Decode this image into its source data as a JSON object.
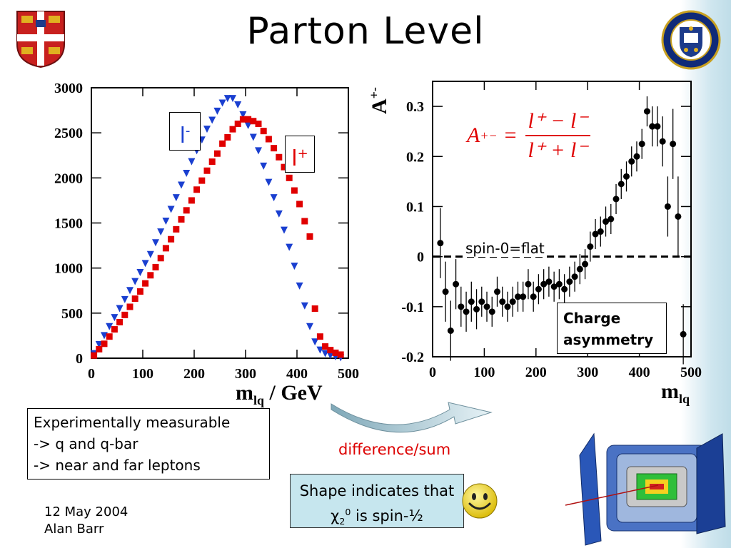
{
  "title": "Parton Level",
  "left_chart": {
    "xlabel_main": "m",
    "xlabel_sub": "lq",
    "xlabel_unit": " / GeV",
    "legend_lminus": "l",
    "legend_lminus_sup": "-",
    "legend_lplus": "l",
    "legend_lplus_sup": "+"
  },
  "right_chart": {
    "ylabel_main": "A",
    "ylabel_sup": "+-",
    "xlabel_main": "m",
    "xlabel_sub": "lq",
    "formula_lhs": "A",
    "formula_lhs_sup": "+−",
    "formula_eq": "=",
    "formula_num": "l⁺ − l⁻",
    "formula_den": "l⁺ + l⁻",
    "annotation": "spin-0=flat",
    "charge_line1": "Charge",
    "charge_line2": "asymmetry"
  },
  "measure_box": {
    "line1": "Experimentally measurable",
    "line2": "-> q and q-bar",
    "line3": "-> near and far leptons"
  },
  "diff_label": "difference/sum",
  "shape_box": {
    "line1": "Shape indicates that",
    "line2_chi": "χ",
    "line2_sub": "2",
    "line2_sup": "0",
    "line2_rest": " is spin-½"
  },
  "footer": {
    "date": "12 May 2004",
    "author": "Alan Barr"
  },
  "colors": {
    "lminus": "#1a3fd0",
    "lplus": "#e00000",
    "asymmetry": "#000000",
    "formula": "#e00000",
    "highlight_box": "#c6e6ee"
  },
  "icons": [
    "cambridge-crest-icon",
    "oxford-seal-icon",
    "smiley-icon",
    "detector-icon",
    "curved-arrow-icon"
  ],
  "chart_data": [
    {
      "type": "scatter",
      "xlabel": "m_lq / GeV",
      "ylabel": "",
      "xlim": [
        0,
        500
      ],
      "ylim": [
        0,
        3000
      ],
      "xticks": [
        0,
        100,
        200,
        300,
        400,
        500
      ],
      "yticks": [
        0,
        500,
        1000,
        1500,
        2000,
        2500,
        3000
      ],
      "series": [
        {
          "name": "l-",
          "marker": "triangle-down",
          "x": [
            5,
            15,
            25,
            35,
            45,
            55,
            65,
            75,
            85,
            95,
            105,
            115,
            125,
            135,
            145,
            155,
            165,
            175,
            185,
            195,
            205,
            215,
            225,
            235,
            245,
            255,
            265,
            275,
            285,
            295,
            305,
            315,
            325,
            335,
            345,
            355,
            365,
            375,
            385,
            395,
            405,
            415,
            425,
            435,
            445,
            455,
            465,
            475,
            485
          ],
          "y": [
            50,
            150,
            250,
            350,
            450,
            550,
            650,
            750,
            850,
            950,
            1050,
            1150,
            1280,
            1400,
            1520,
            1650,
            1780,
            1920,
            2050,
            2180,
            2300,
            2420,
            2540,
            2640,
            2740,
            2830,
            2880,
            2880,
            2810,
            2700,
            2580,
            2450,
            2300,
            2130,
            1950,
            1780,
            1600,
            1420,
            1230,
            1020,
            800,
            580,
            350,
            180,
            90,
            50,
            30,
            15,
            5
          ]
        },
        {
          "name": "l+",
          "marker": "square",
          "x": [
            5,
            15,
            25,
            35,
            45,
            55,
            65,
            75,
            85,
            95,
            105,
            115,
            125,
            135,
            145,
            155,
            165,
            175,
            185,
            195,
            205,
            215,
            225,
            235,
            245,
            255,
            265,
            275,
            285,
            295,
            305,
            315,
            325,
            335,
            345,
            355,
            365,
            375,
            385,
            395,
            405,
            415,
            425,
            435,
            445,
            455,
            465,
            475,
            485
          ],
          "y": [
            30,
            100,
            160,
            240,
            320,
            400,
            480,
            570,
            660,
            740,
            830,
            920,
            1010,
            1110,
            1220,
            1320,
            1430,
            1540,
            1640,
            1750,
            1870,
            1970,
            2080,
            2180,
            2270,
            2380,
            2450,
            2540,
            2600,
            2650,
            2650,
            2630,
            2600,
            2520,
            2430,
            2330,
            2230,
            2120,
            2000,
            1860,
            1710,
            1520,
            1350,
            550,
            240,
            130,
            90,
            60,
            40
          ]
        }
      ]
    },
    {
      "type": "scatter",
      "xlabel": "m_lq",
      "ylabel": "A+-",
      "xlim": [
        0,
        500
      ],
      "ylim": [
        -0.2,
        0.35
      ],
      "xticks": [
        0,
        100,
        200,
        300,
        400,
        500
      ],
      "yticks": [
        -0.2,
        -0.1,
        0,
        0.1,
        0.2,
        0.3
      ],
      "reference_line": 0,
      "series": [
        {
          "name": "",
          "marker": "circle",
          "x": [
            15,
            25,
            35,
            45,
            55,
            65,
            75,
            85,
            95,
            105,
            115,
            125,
            135,
            145,
            155,
            165,
            175,
            185,
            195,
            205,
            215,
            225,
            235,
            245,
            255,
            265,
            275,
            285,
            295,
            305,
            315,
            325,
            335,
            345,
            355,
            365,
            375,
            385,
            395,
            405,
            415,
            425,
            435,
            445,
            455,
            465,
            475,
            485
          ],
          "y": [
            0.027,
            -0.07,
            -0.148,
            -0.055,
            -0.1,
            -0.11,
            -0.09,
            -0.105,
            -0.09,
            -0.1,
            -0.11,
            -0.07,
            -0.09,
            -0.1,
            -0.09,
            -0.08,
            -0.08,
            -0.055,
            -0.08,
            -0.065,
            -0.055,
            -0.05,
            -0.06,
            -0.055,
            -0.065,
            -0.05,
            -0.04,
            -0.025,
            -0.015,
            0.02,
            0.045,
            0.05,
            0.07,
            0.075,
            0.115,
            0.145,
            0.16,
            0.19,
            0.2,
            0.225,
            0.29,
            0.26,
            0.26,
            0.23,
            0.1,
            0.225,
            0.08,
            -0.155
          ],
          "errors": [
            0.07,
            0.06,
            0.06,
            0.05,
            0.04,
            0.04,
            0.04,
            0.04,
            0.03,
            0.03,
            0.03,
            0.03,
            0.03,
            0.03,
            0.03,
            0.03,
            0.03,
            0.03,
            0.03,
            0.03,
            0.03,
            0.03,
            0.03,
            0.03,
            0.03,
            0.03,
            0.03,
            0.03,
            0.03,
            0.03,
            0.03,
            0.03,
            0.03,
            0.03,
            0.03,
            0.03,
            0.03,
            0.03,
            0.03,
            0.03,
            0.03,
            0.04,
            0.04,
            0.05,
            0.06,
            0.07,
            0.08,
            0.06
          ]
        }
      ]
    }
  ]
}
